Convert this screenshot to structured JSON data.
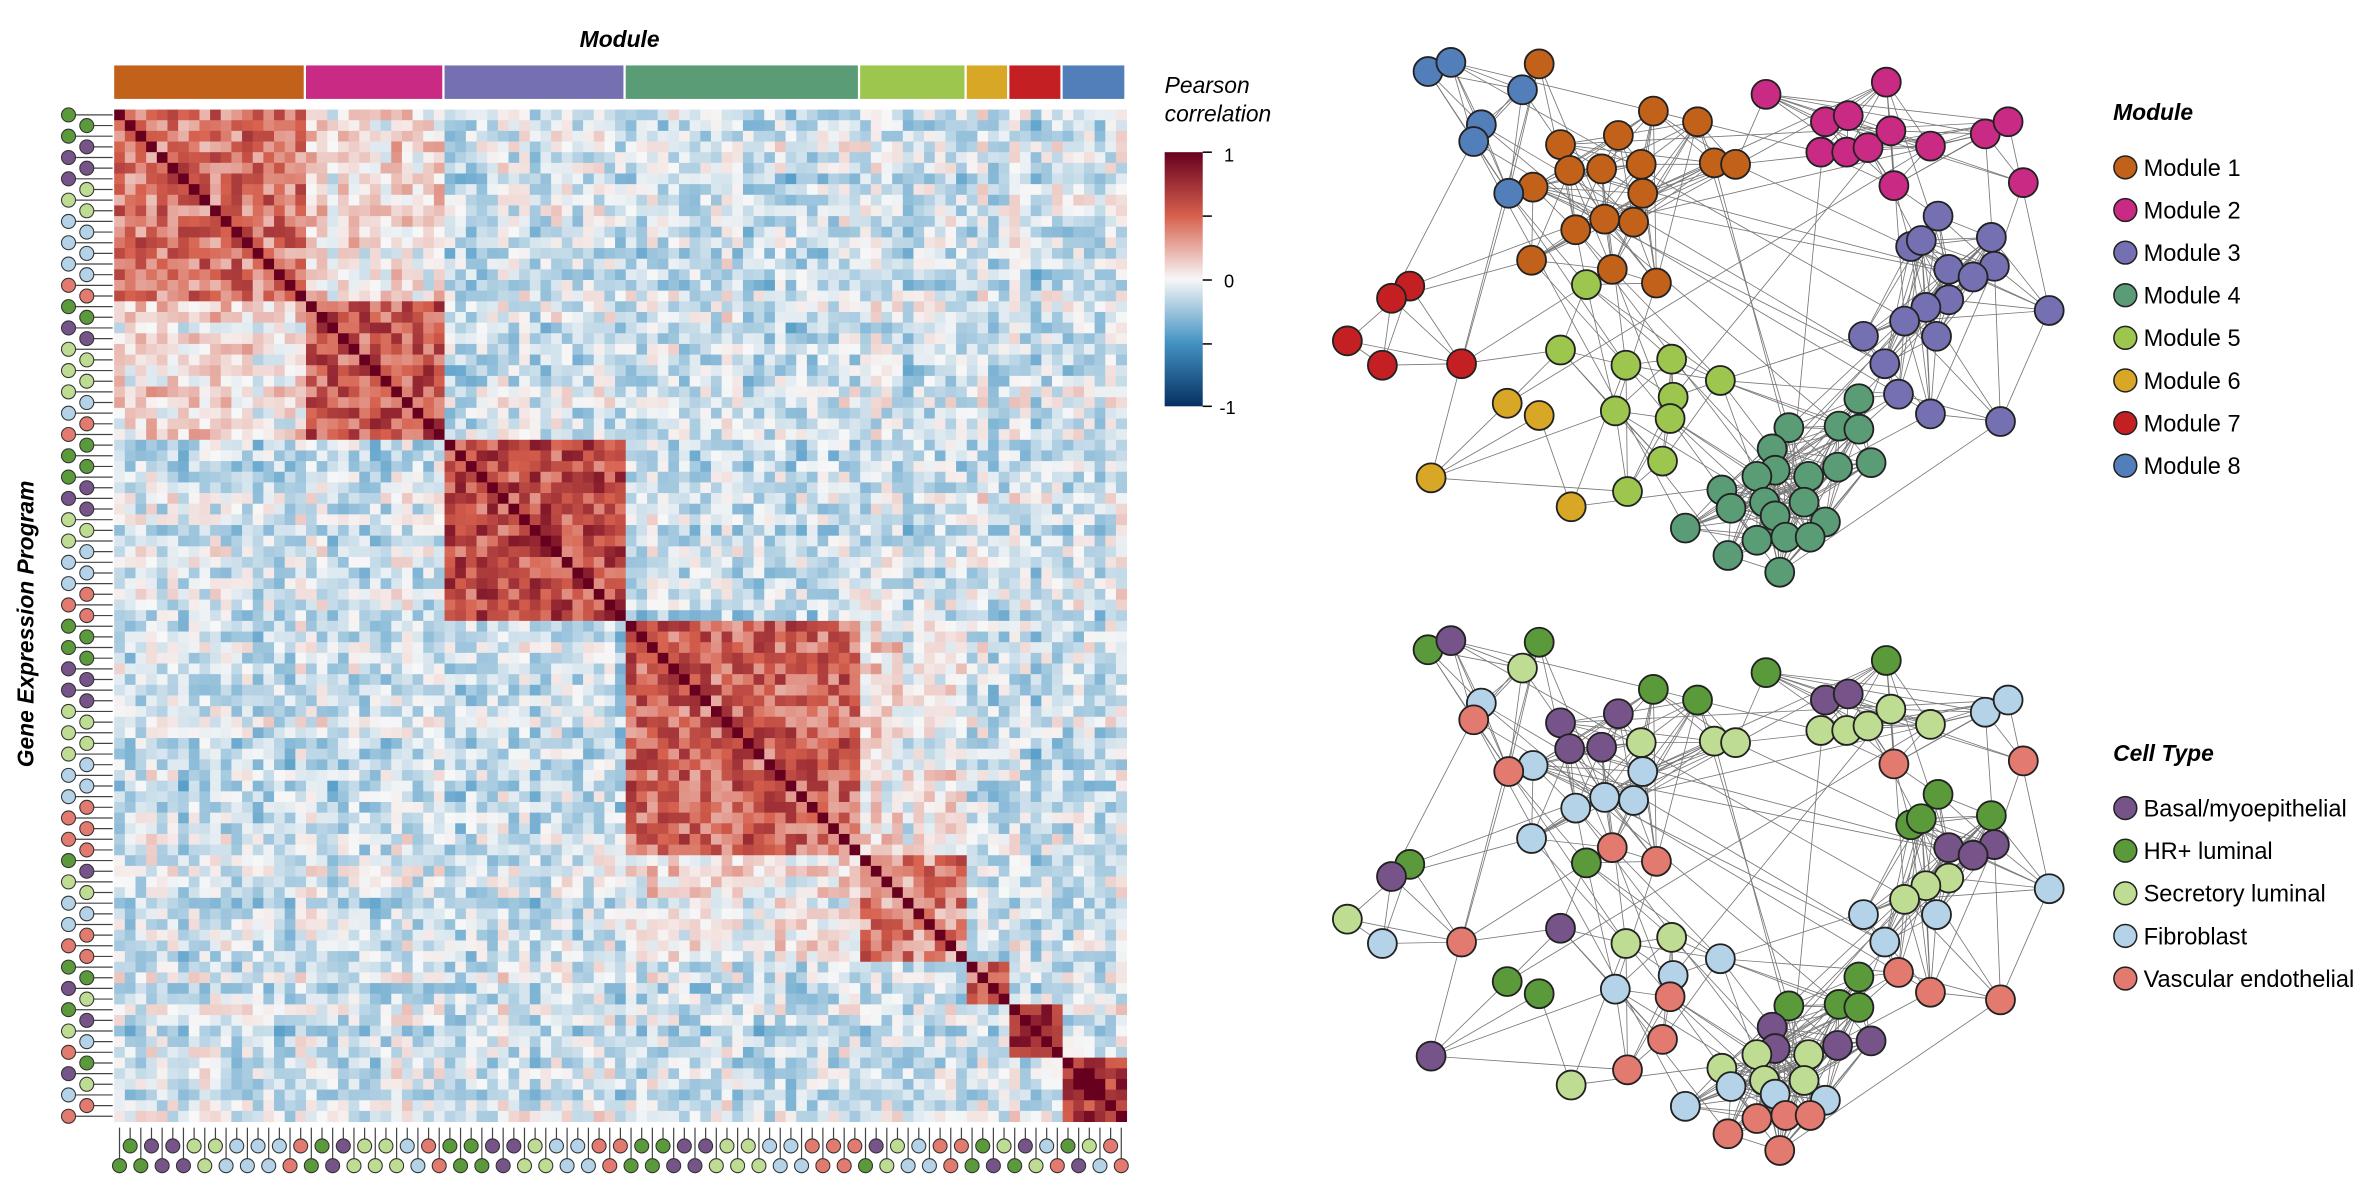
{
  "chart_data": [
    {
      "type": "heatmap",
      "title": "Module",
      "ylabel": "Gene Expression Program",
      "colorbar": {
        "title_line1": "Pearson",
        "title_line2": "correlation",
        "range": [
          -1,
          1
        ],
        "tick_labels": [
          "1",
          "0",
          "-1"
        ],
        "colors": [
          "#053061",
          "#4393C3",
          "#F7F7F7",
          "#D6604D",
          "#67001F"
        ]
      },
      "modules": [
        {
          "name": "Module 1",
          "color": "#C2611A",
          "size": 18,
          "programs": [
            [
              "HR+ luminal",
              3
            ],
            [
              "Basal/myoepithelial",
              4
            ],
            [
              "Secretory luminal",
              3
            ],
            [
              "Fibroblast",
              6
            ],
            [
              "Vascular endothelial",
              2
            ]
          ]
        },
        {
          "name": "Module 2",
          "color": "#C82A84",
          "size": 13,
          "programs": [
            [
              "HR+ luminal",
              2
            ],
            [
              "Basal/myoepithelial",
              2
            ],
            [
              "Secretory luminal",
              5
            ],
            [
              "Fibroblast",
              2
            ],
            [
              "Vascular endothelial",
              2
            ]
          ]
        },
        {
          "name": "Module 3",
          "color": "#7570B2",
          "size": 17,
          "programs": [
            [
              "HR+ luminal",
              4
            ],
            [
              "Basal/myoepithelial",
              3
            ],
            [
              "Secretory luminal",
              3
            ],
            [
              "Fibroblast",
              4
            ],
            [
              "Vascular endothelial",
              3
            ]
          ]
        },
        {
          "name": "Module 4",
          "color": "#5A9C76",
          "size": 22,
          "programs": [
            [
              "HR+ luminal",
              4
            ],
            [
              "Basal/myoepithelial",
              4
            ],
            [
              "Secretory luminal",
              5
            ],
            [
              "Fibroblast",
              4
            ],
            [
              "Vascular endothelial",
              5
            ]
          ]
        },
        {
          "name": "Module 5",
          "color": "#9DC64E",
          "size": 10,
          "programs": [
            [
              "HR+ luminal",
              1
            ],
            [
              "Basal/myoepithelial",
              1
            ],
            [
              "Secretory luminal",
              2
            ],
            [
              "Fibroblast",
              3
            ],
            [
              "Vascular endothelial",
              3
            ]
          ]
        },
        {
          "name": "Module 6",
          "color": "#D9A726",
          "size": 4,
          "programs": [
            [
              "HR+ luminal",
              2
            ],
            [
              "Basal/myoepithelial",
              1
            ],
            [
              "Secretory luminal",
              1
            ]
          ]
        },
        {
          "name": "Module 7",
          "color": "#C42023",
          "size": 5,
          "programs": [
            [
              "HR+ luminal",
              1
            ],
            [
              "Basal/myoepithelial",
              1
            ],
            [
              "Secretory luminal",
              1
            ],
            [
              "Fibroblast",
              1
            ],
            [
              "Vascular endothelial",
              1
            ]
          ]
        },
        {
          "name": "Module 8",
          "color": "#527FBA",
          "size": 6,
          "programs": [
            [
              "HR+ luminal",
              1
            ],
            [
              "Basal/myoepithelial",
              1
            ],
            [
              "Secretory luminal",
              1
            ],
            [
              "Fibroblast",
              1
            ],
            [
              "Vascular endothelial",
              2
            ]
          ]
        }
      ]
    },
    {
      "type": "network",
      "legend_title": "Module",
      "color_by": "module"
    },
    {
      "type": "network",
      "legend_title": "Cell Type",
      "color_by": "cell_type",
      "cell_types": [
        {
          "name": "Basal/myoepithelial",
          "color": "#765389"
        },
        {
          "name": "HR+ luminal",
          "color": "#5A9A3A"
        },
        {
          "name": "Secretory luminal",
          "color": "#BEDD92"
        },
        {
          "name": "Fibroblast",
          "color": "#B5D3E8"
        },
        {
          "name": "Vascular endothelial",
          "color": "#E37A6F"
        }
      ]
    }
  ]
}
